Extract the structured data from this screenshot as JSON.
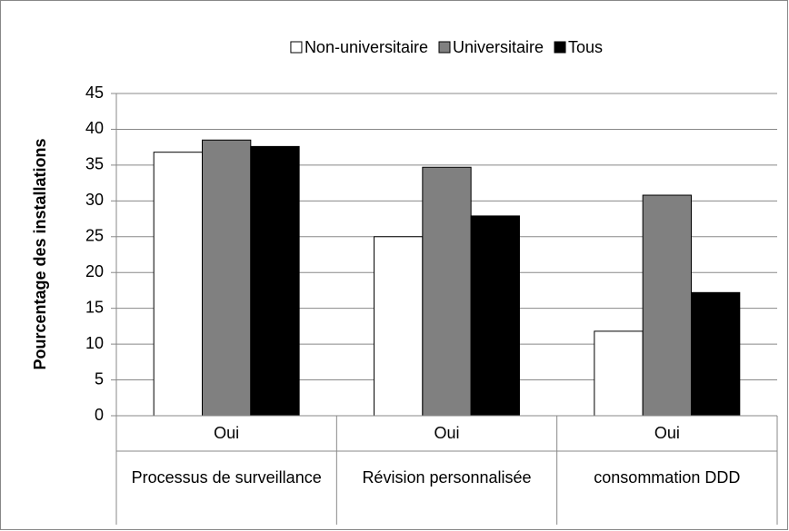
{
  "chart_data": {
    "type": "bar",
    "ylabel": "Pourcentage des installations",
    "categories": [
      "Oui",
      "Oui",
      "Oui"
    ],
    "groups": [
      "Processus de surveillance",
      "Révision personnalisée",
      "consommation DDD"
    ],
    "series": [
      {
        "name": "Non-universitaire",
        "color": "#ffffff",
        "values": [
          36.8,
          25,
          11.8
        ]
      },
      {
        "name": "Universitaire",
        "color": "#808080",
        "values": [
          38.5,
          34.7,
          30.8
        ]
      },
      {
        "name": "Tous",
        "color": "#000000",
        "values": [
          37.6,
          27.9,
          17.2
        ]
      }
    ],
    "ylim": [
      0,
      45
    ],
    "yticks": [
      0,
      5,
      10,
      15,
      20,
      25,
      30,
      35,
      40,
      45
    ],
    "grid": true,
    "legend": "top"
  }
}
